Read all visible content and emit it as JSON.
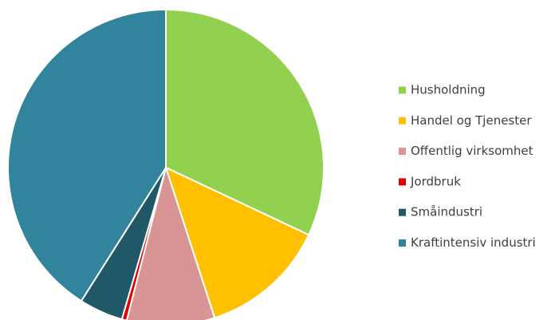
{
  "chart_data": {
    "type": "pie",
    "categories": [
      "Husholdning",
      "Handel og Tjenester",
      "Offentlig virksomhet",
      "Jordbruk",
      "Småindustri",
      "Kraftintensiv industri"
    ],
    "values": [
      32,
      13,
      9,
      0.5,
      4.5,
      41
    ],
    "colors": [
      "#92d050",
      "#ffc000",
      "#d99594",
      "#e00000",
      "#215867",
      "#31849b"
    ],
    "legend": "right"
  }
}
